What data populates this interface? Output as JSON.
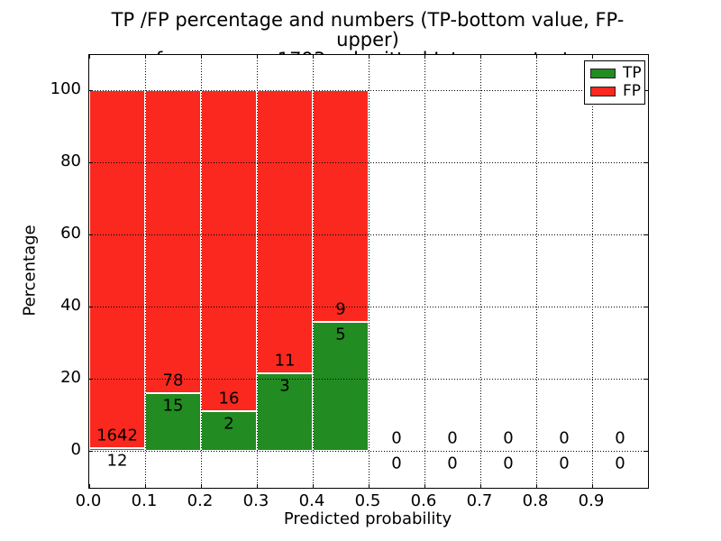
{
  "figure": {
    "title_lines": [
      "TP /FP percentage and numbers (TP-bottom value, FP-upper)",
      "from among 1793 submitted L-type contacts"
    ]
  },
  "chart_data": {
    "type": "bar",
    "stacked": true,
    "title": "TP /FP percentage and numbers (TP-bottom value, FP-upper)\nfrom among 1793 submitted L-type contacts",
    "xlabel": "Predicted probability",
    "ylabel": "Percentage",
    "xlim": [
      0.0,
      1.0
    ],
    "ylim": [
      -10.2,
      109.8
    ],
    "grid": true,
    "gridstyle": "dotted",
    "legend_position": "upper right",
    "xtick_values": [
      0.0,
      0.1,
      0.2,
      0.3,
      0.4,
      0.5,
      0.6,
      0.7,
      0.8,
      0.9
    ],
    "xtick_labels": [
      "0.0",
      "0.1",
      "0.2",
      "0.3",
      "0.4",
      "0.5",
      "0.6",
      "0.7",
      "0.8",
      "0.9"
    ],
    "ytick_values": [
      0,
      20,
      40,
      60,
      80,
      100
    ],
    "ytick_labels": [
      "0",
      "20",
      "40",
      "60",
      "80",
      "100"
    ],
    "series": [
      {
        "name": "TP",
        "color": "#228b22"
      },
      {
        "name": "FP",
        "color": "#fa281e"
      }
    ],
    "bins": [
      {
        "x_start": 0.0,
        "x_end": 0.1,
        "tp_count": 12,
        "fp_count": 1642,
        "tp_pct": 0.73,
        "fp_pct": 99.27
      },
      {
        "x_start": 0.1,
        "x_end": 0.2,
        "tp_count": 15,
        "fp_count": 78,
        "tp_pct": 16.13,
        "fp_pct": 83.87
      },
      {
        "x_start": 0.2,
        "x_end": 0.3,
        "tp_count": 2,
        "fp_count": 16,
        "tp_pct": 11.11,
        "fp_pct": 88.89
      },
      {
        "x_start": 0.3,
        "x_end": 0.4,
        "tp_count": 3,
        "fp_count": 11,
        "tp_pct": 21.43,
        "fp_pct": 78.57
      },
      {
        "x_start": 0.4,
        "x_end": 0.5,
        "tp_count": 5,
        "fp_count": 9,
        "tp_pct": 35.71,
        "fp_pct": 64.29
      },
      {
        "x_start": 0.5,
        "x_end": 0.6,
        "tp_count": 0,
        "fp_count": 0,
        "tp_pct": 0,
        "fp_pct": 0
      },
      {
        "x_start": 0.6,
        "x_end": 0.7,
        "tp_count": 0,
        "fp_count": 0,
        "tp_pct": 0,
        "fp_pct": 0
      },
      {
        "x_start": 0.7,
        "x_end": 0.8,
        "tp_count": 0,
        "fp_count": 0,
        "tp_pct": 0,
        "fp_pct": 0
      },
      {
        "x_start": 0.8,
        "x_end": 0.9,
        "tp_count": 0,
        "fp_count": 0,
        "tp_pct": 0,
        "fp_pct": 0
      },
      {
        "x_start": 0.9,
        "x_end": 1.0,
        "tp_count": 0,
        "fp_count": 0,
        "tp_pct": 0,
        "fp_pct": 0
      }
    ],
    "legend": [
      {
        "label": "TP",
        "color": "#228b22"
      },
      {
        "label": "FP",
        "color": "#fa281e"
      }
    ]
  }
}
